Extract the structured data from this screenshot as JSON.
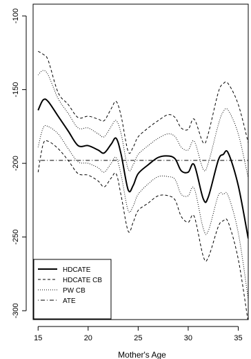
{
  "chart_data": {
    "type": "line",
    "title": "",
    "xlabel": "Mother's Age",
    "ylabel": "",
    "xlim": [
      14.5,
      36
    ],
    "ylim": [
      -306,
      -92
    ],
    "x_ticks": [
      15,
      20,
      25,
      30,
      35
    ],
    "y_ticks": [
      -300,
      -250,
      -200,
      -150,
      -100
    ],
    "grid": false,
    "legend_position": "bottom-left",
    "series": [
      {
        "name": "HDCATE",
        "style": "solid",
        "points": [
          [
            15,
            -164
          ],
          [
            15.5,
            -157
          ],
          [
            16,
            -158
          ],
          [
            17,
            -168
          ],
          [
            18,
            -178
          ],
          [
            19,
            -188
          ],
          [
            20,
            -188
          ],
          [
            21,
            -191
          ],
          [
            21.6,
            -193
          ],
          [
            22.3,
            -187
          ],
          [
            22.8,
            -183
          ],
          [
            23.3,
            -194
          ],
          [
            24,
            -218
          ],
          [
            24.5,
            -215
          ],
          [
            25,
            -207
          ],
          [
            26,
            -201
          ],
          [
            27,
            -196
          ],
          [
            28,
            -195
          ],
          [
            28.7,
            -197
          ],
          [
            29.3,
            -205
          ],
          [
            30,
            -206
          ],
          [
            30.6,
            -201
          ],
          [
            31.5,
            -224
          ],
          [
            32,
            -223
          ],
          [
            33,
            -198
          ],
          [
            33.5,
            -194
          ],
          [
            34,
            -193
          ],
          [
            35,
            -215
          ],
          [
            36,
            -251
          ]
        ]
      },
      {
        "name": "HDCATE CB",
        "style": "dashed",
        "points": [
          [
            15,
            -124
          ],
          [
            15.5,
            -126
          ],
          [
            16,
            -130
          ],
          [
            17,
            -152
          ],
          [
            18,
            -160
          ],
          [
            19,
            -169
          ],
          [
            20,
            -168
          ],
          [
            21,
            -170
          ],
          [
            21.6,
            -171
          ],
          [
            22.3,
            -163
          ],
          [
            22.8,
            -158
          ],
          [
            23.3,
            -168
          ],
          [
            24,
            -192
          ],
          [
            24.5,
            -189
          ],
          [
            25,
            -182
          ],
          [
            26,
            -176
          ],
          [
            27,
            -171
          ],
          [
            28,
            -167
          ],
          [
            28.7,
            -169
          ],
          [
            29.3,
            -176
          ],
          [
            30,
            -177
          ],
          [
            30.6,
            -170
          ],
          [
            31.5,
            -186
          ],
          [
            32,
            -180
          ],
          [
            33,
            -152
          ],
          [
            33.5,
            -146
          ],
          [
            34,
            -146
          ],
          [
            35,
            -160
          ],
          [
            36,
            -186
          ]
        ]
      },
      {
        "name": "HDCATE CB",
        "style": "dashed",
        "points": [
          [
            15,
            -206
          ],
          [
            15.5,
            -187
          ],
          [
            16,
            -185
          ],
          [
            17,
            -190
          ],
          [
            18,
            -198
          ],
          [
            19,
            -207
          ],
          [
            20,
            -208
          ],
          [
            21,
            -212
          ],
          [
            21.6,
            -216
          ],
          [
            22.3,
            -210
          ],
          [
            22.8,
            -207
          ],
          [
            23.3,
            -222
          ],
          [
            24,
            -246
          ],
          [
            24.5,
            -240
          ],
          [
            25,
            -232
          ],
          [
            26,
            -227
          ],
          [
            27,
            -222
          ],
          [
            28,
            -222
          ],
          [
            28.7,
            -225
          ],
          [
            29.3,
            -236
          ],
          [
            30,
            -240
          ],
          [
            30.6,
            -236
          ],
          [
            31.5,
            -263
          ],
          [
            32,
            -264
          ],
          [
            33,
            -243
          ],
          [
            33.5,
            -239
          ],
          [
            34,
            -240
          ],
          [
            35,
            -265
          ],
          [
            36,
            -308
          ]
        ]
      },
      {
        "name": "PW CB",
        "style": "dotted",
        "points": [
          [
            15,
            -140
          ],
          [
            15.5,
            -137
          ],
          [
            16,
            -140
          ],
          [
            17,
            -156
          ],
          [
            18,
            -166
          ],
          [
            19,
            -176
          ],
          [
            20,
            -176
          ],
          [
            21,
            -180
          ],
          [
            21.6,
            -182
          ],
          [
            22.3,
            -175
          ],
          [
            22.8,
            -171
          ],
          [
            23.3,
            -180
          ],
          [
            24,
            -204
          ],
          [
            24.5,
            -201
          ],
          [
            25,
            -194
          ],
          [
            26,
            -188
          ],
          [
            27,
            -183
          ],
          [
            28,
            -180
          ],
          [
            28.7,
            -182
          ],
          [
            29.3,
            -189
          ],
          [
            30,
            -191
          ],
          [
            30.6,
            -185
          ],
          [
            31.5,
            -204
          ],
          [
            32,
            -200
          ],
          [
            33,
            -174
          ],
          [
            33.5,
            -165
          ],
          [
            34,
            -164
          ],
          [
            35,
            -180
          ],
          [
            36,
            -210
          ]
        ]
      },
      {
        "name": "PW CB",
        "style": "dotted",
        "points": [
          [
            15,
            -189
          ],
          [
            15.5,
            -176
          ],
          [
            16,
            -175
          ],
          [
            17,
            -180
          ],
          [
            18,
            -190
          ],
          [
            19,
            -199
          ],
          [
            20,
            -200
          ],
          [
            21,
            -203
          ],
          [
            21.6,
            -206
          ],
          [
            22.3,
            -200
          ],
          [
            22.8,
            -196
          ],
          [
            23.3,
            -208
          ],
          [
            24,
            -232
          ],
          [
            24.5,
            -229
          ],
          [
            25,
            -221
          ],
          [
            26,
            -214
          ],
          [
            27,
            -209
          ],
          [
            28,
            -209
          ],
          [
            28.7,
            -211
          ],
          [
            29.3,
            -221
          ],
          [
            30,
            -222
          ],
          [
            30.6,
            -217
          ],
          [
            31.5,
            -244
          ],
          [
            32,
            -246
          ],
          [
            33,
            -222
          ],
          [
            33.5,
            -221
          ],
          [
            34,
            -222
          ],
          [
            35,
            -247
          ],
          [
            36,
            -292
          ]
        ]
      },
      {
        "name": "ATE",
        "style": "dotdash",
        "points": [
          [
            15,
            -198
          ],
          [
            36,
            -198
          ]
        ]
      }
    ],
    "legend": [
      {
        "label": "HDCATE",
        "style": "solid"
      },
      {
        "label": "HDCATE CB",
        "style": "dashed"
      },
      {
        "label": "PW CB",
        "style": "dotted"
      },
      {
        "label": "ATE",
        "style": "dotdash"
      }
    ]
  }
}
